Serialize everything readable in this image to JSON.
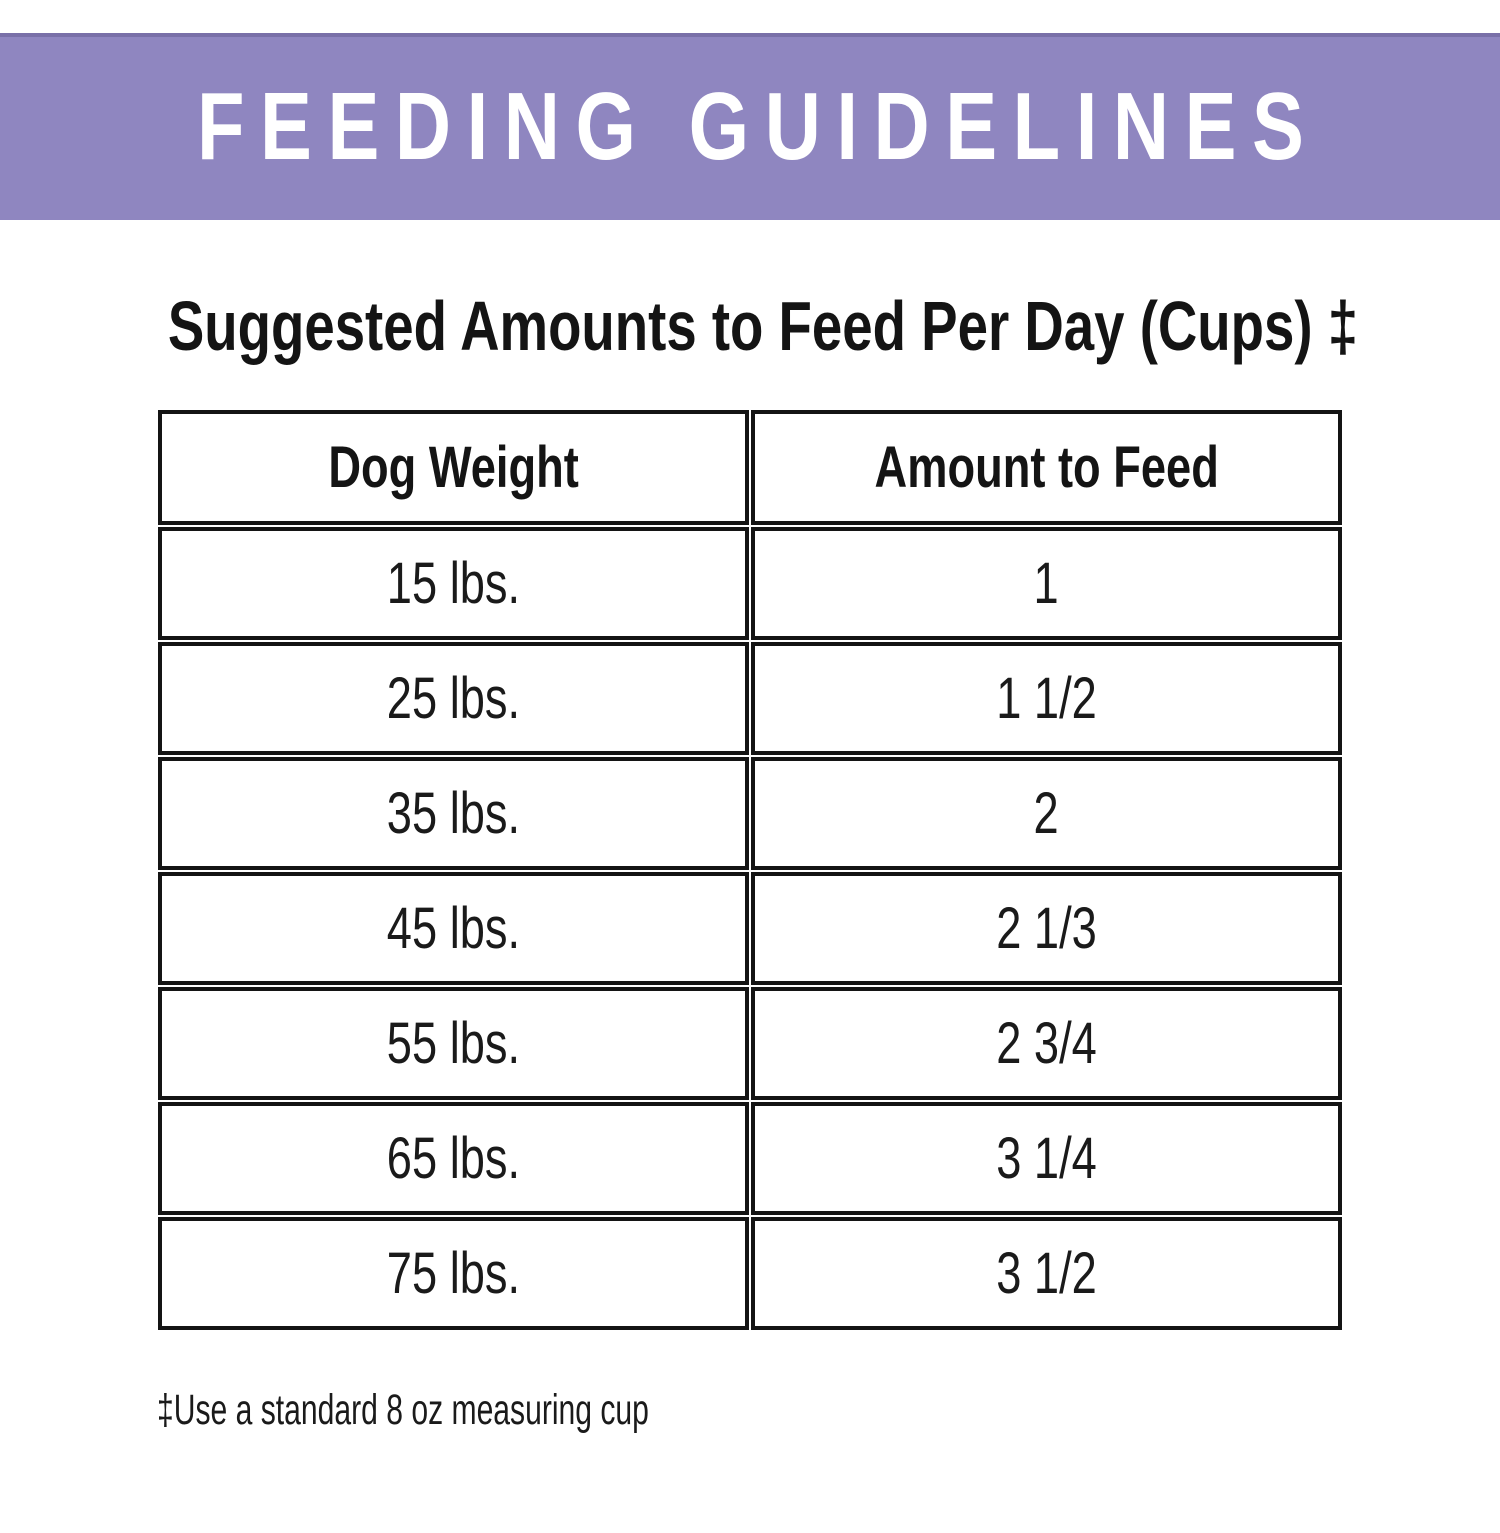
{
  "banner": {
    "title": "FEEDING GUIDELINES"
  },
  "page": {
    "heading": "Suggested Amounts to Feed Per Day (Cups) ‡",
    "footnote": "‡Use a standard 8 oz measuring cup"
  },
  "table": {
    "columns": [
      "Dog Weight",
      "Amount to Feed"
    ],
    "rows": [
      {
        "dog_weight": "15 lbs.",
        "amount_to_feed": "1"
      },
      {
        "dog_weight": "25 lbs.",
        "amount_to_feed": "1 1/2"
      },
      {
        "dog_weight": "35 lbs.",
        "amount_to_feed": "2"
      },
      {
        "dog_weight": "45 lbs.",
        "amount_to_feed": "2 1/3"
      },
      {
        "dog_weight": "55 lbs.",
        "amount_to_feed": "2 3/4"
      },
      {
        "dog_weight": "65 lbs.",
        "amount_to_feed": "3 1/4"
      },
      {
        "dog_weight": "75 lbs.",
        "amount_to_feed": "3 1/2"
      }
    ]
  },
  "colors": {
    "banner_background": "#8F86C0",
    "banner_text": "#FFFFFF",
    "text": "#161616",
    "table_border": "#141414"
  },
  "chart_data": {
    "type": "table",
    "title": "Suggested Amounts to Feed Per Day (Cups) ‡",
    "columns": [
      "Dog Weight",
      "Amount to Feed"
    ],
    "rows": [
      [
        "15 lbs.",
        "1"
      ],
      [
        "25 lbs.",
        "1 1/2"
      ],
      [
        "35 lbs.",
        "2"
      ],
      [
        "45 lbs.",
        "2 1/3"
      ],
      [
        "55 lbs.",
        "2 3/4"
      ],
      [
        "65 lbs.",
        "3 1/4"
      ],
      [
        "75 lbs.",
        "3 1/2"
      ]
    ],
    "footnote": "‡Use a standard 8 oz measuring cup",
    "units": "cups per day"
  }
}
